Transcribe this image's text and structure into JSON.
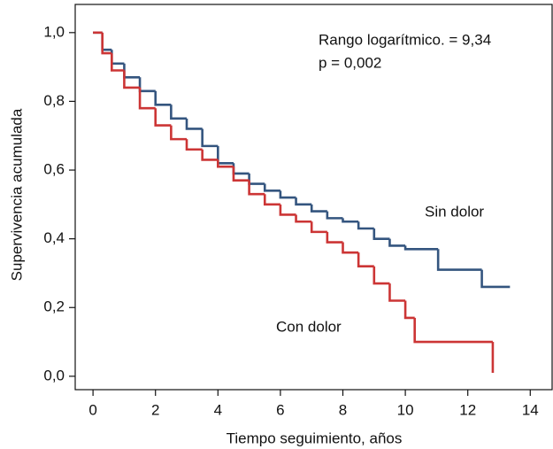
{
  "chart_data": {
    "type": "step",
    "xlabel": "Tiempo seguimiento, años",
    "ylabel": "Supervivencia acumulada",
    "annotations": [
      "Rango logarítmico. = 9,34",
      "p = 0,002"
    ],
    "xlim": [
      -0.57,
      14.7
    ],
    "ylim": [
      -0.039,
      1.082
    ],
    "xticks": [
      0,
      2,
      4,
      6,
      8,
      10,
      12,
      14
    ],
    "yticks": [
      {
        "value": 0,
        "label": "0,0"
      },
      {
        "value": 0.2,
        "label": "0,2"
      },
      {
        "value": 0.4,
        "label": "0,4"
      },
      {
        "value": 0.6,
        "label": "0,6"
      },
      {
        "value": 0.8,
        "label": "0,8"
      },
      {
        "value": 1,
        "label": "1,0"
      }
    ],
    "series": [
      {
        "name": "Sin dolor",
        "color": "#34557f",
        "x": [
          0,
          0.3,
          0.6,
          1,
          1.5,
          2,
          2.5,
          3,
          3.5,
          4,
          4.5,
          5,
          5.5,
          6,
          6.5,
          7,
          7.5,
          8,
          8.5,
          9,
          9.5,
          10,
          11.05,
          12.45,
          13.35
        ],
        "values": [
          1,
          0.95,
          0.91,
          0.87,
          0.83,
          0.79,
          0.75,
          0.72,
          0.67,
          0.62,
          0.59,
          0.56,
          0.54,
          0.52,
          0.5,
          0.48,
          0.46,
          0.45,
          0.43,
          0.4,
          0.38,
          0.37,
          0.31,
          0.26,
          0.26
        ]
      },
      {
        "name": "Con dolor",
        "color": "#cc3535",
        "x": [
          0,
          0.3,
          0.6,
          1,
          1.5,
          2,
          2.5,
          3,
          3.5,
          4,
          4.5,
          5,
          5.5,
          6,
          6.5,
          7,
          7.5,
          8,
          8.5,
          9,
          9.5,
          10,
          10.3,
          12.8
        ],
        "values": [
          1,
          0.94,
          0.89,
          0.84,
          0.78,
          0.73,
          0.69,
          0.66,
          0.63,
          0.61,
          0.57,
          0.53,
          0.5,
          0.47,
          0.45,
          0.42,
          0.39,
          0.36,
          0.32,
          0.27,
          0.22,
          0.17,
          0.1,
          0.01
        ]
      }
    ]
  }
}
